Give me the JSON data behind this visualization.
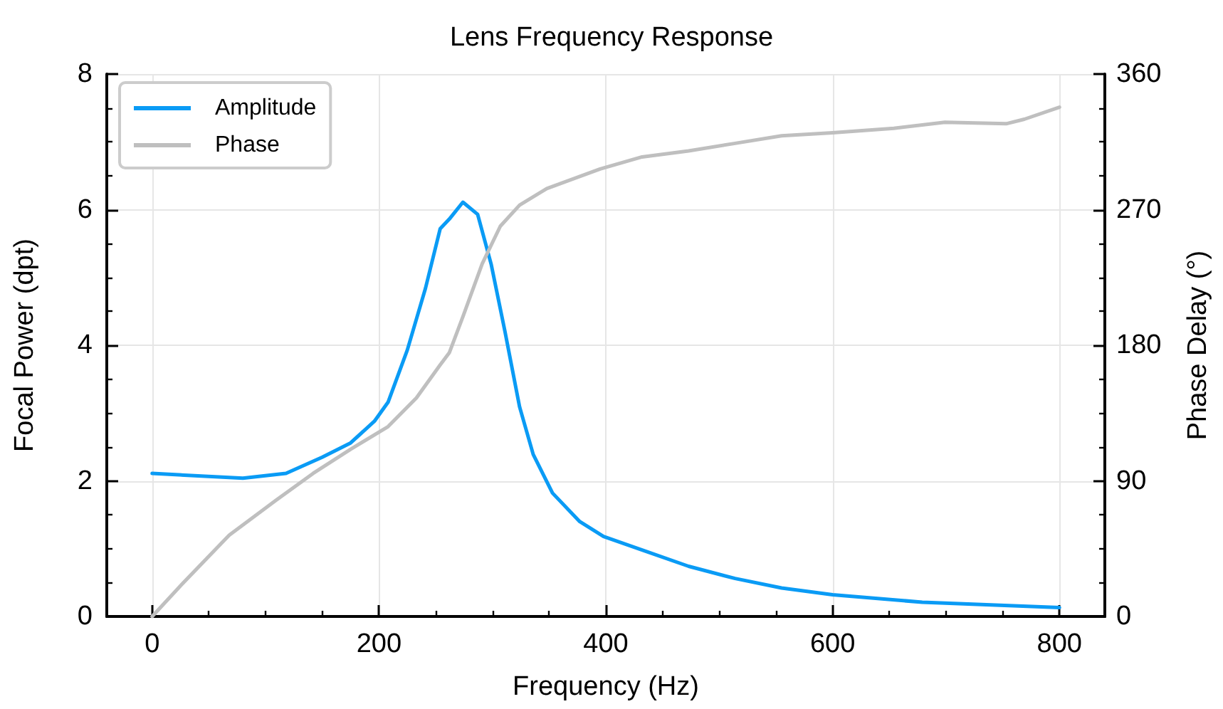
{
  "chart_data": {
    "type": "line",
    "title": "Lens Frequency Response",
    "xlabel": "Frequency (Hz)",
    "ylabel": "Focal Power (dpt)",
    "y2label": "Phase Delay (°)",
    "xlim": [
      -40,
      840
    ],
    "xticks": [
      0,
      200,
      400,
      600,
      800
    ],
    "ylim": [
      0,
      8
    ],
    "yticks": [
      0,
      2,
      4,
      6,
      8
    ],
    "y2lim": [
      0,
      360
    ],
    "y2ticks": [
      0,
      90,
      180,
      270,
      360
    ],
    "grid": true,
    "legend": "top left",
    "marker": "none",
    "line_style": "solid",
    "series": [
      {
        "name": "Amplitude",
        "color": "#0a9bf5",
        "x": [
          0,
          80,
          118,
          150,
          175,
          196,
          208,
          225,
          241,
          254,
          262,
          274,
          287,
          299,
          311,
          324,
          336,
          353,
          377,
          398,
          432,
          473,
          514,
          555,
          600,
          679,
          800
        ],
        "values": [
          2.11,
          2.04,
          2.11,
          2.35,
          2.56,
          2.88,
          3.16,
          3.93,
          4.84,
          5.72,
          5.86,
          6.11,
          5.93,
          5.19,
          4.21,
          3.09,
          2.39,
          1.82,
          1.4,
          1.18,
          0.98,
          0.74,
          0.56,
          0.42,
          0.32,
          0.21,
          0.13
        ]
      },
      {
        "name": "Phase",
        "color": "#bfbfbf",
        "axis": "y2",
        "x": [
          0,
          27,
          68,
          109,
          142,
          175,
          208,
          233,
          254,
          262,
          274,
          291,
          307,
          324,
          348,
          395,
          432,
          473,
          514,
          555,
          600,
          654,
          699,
          753,
          769,
          800
        ],
        "values": [
          0,
          22,
          54,
          77,
          95,
          111,
          126,
          145,
          167,
          175,
          199,
          234,
          259,
          273,
          284,
          297,
          305,
          309,
          314,
          319,
          321,
          324,
          328,
          327,
          330,
          338
        ]
      }
    ]
  }
}
